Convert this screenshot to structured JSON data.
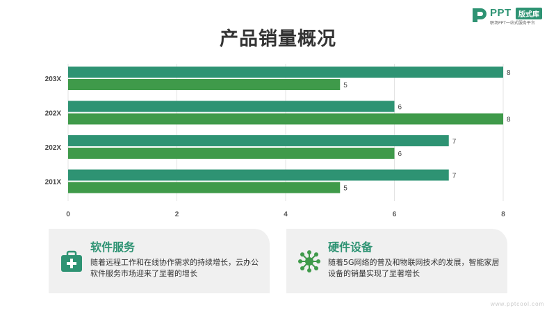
{
  "brand": {
    "logo_text": "PPT",
    "logo_tag": "版式库",
    "logo_sub": "职场PPT一站式服务平台"
  },
  "slide": {
    "title": "产品销量概况"
  },
  "chart_data": {
    "type": "bar",
    "orientation": "horizontal",
    "categories": [
      "203X",
      "202X",
      "202X",
      "201X"
    ],
    "series": [
      {
        "values": [
          8,
          6,
          7,
          7
        ],
        "color": "#2e9373"
      },
      {
        "values": [
          5,
          8,
          6,
          5
        ],
        "color": "#3f9a4a"
      }
    ],
    "xlim": [
      0,
      8
    ],
    "xticks": [
      "0",
      "2",
      "4",
      "6",
      "8"
    ],
    "grid": true,
    "legend": "none"
  },
  "cards": [
    {
      "title": "软件服务",
      "description": "随着远程工作和在线协作需求的持续增长，云办公软件服务市场迎来了显著的增长",
      "icon": "medical-case-icon"
    },
    {
      "title": "硬件设备",
      "description": "随着5G网络的普及和物联网技术的发展，智能家居设备的销量实现了显著增长",
      "icon": "network-hub-icon"
    }
  ],
  "footer": {
    "url": "www.pptcool.com"
  }
}
